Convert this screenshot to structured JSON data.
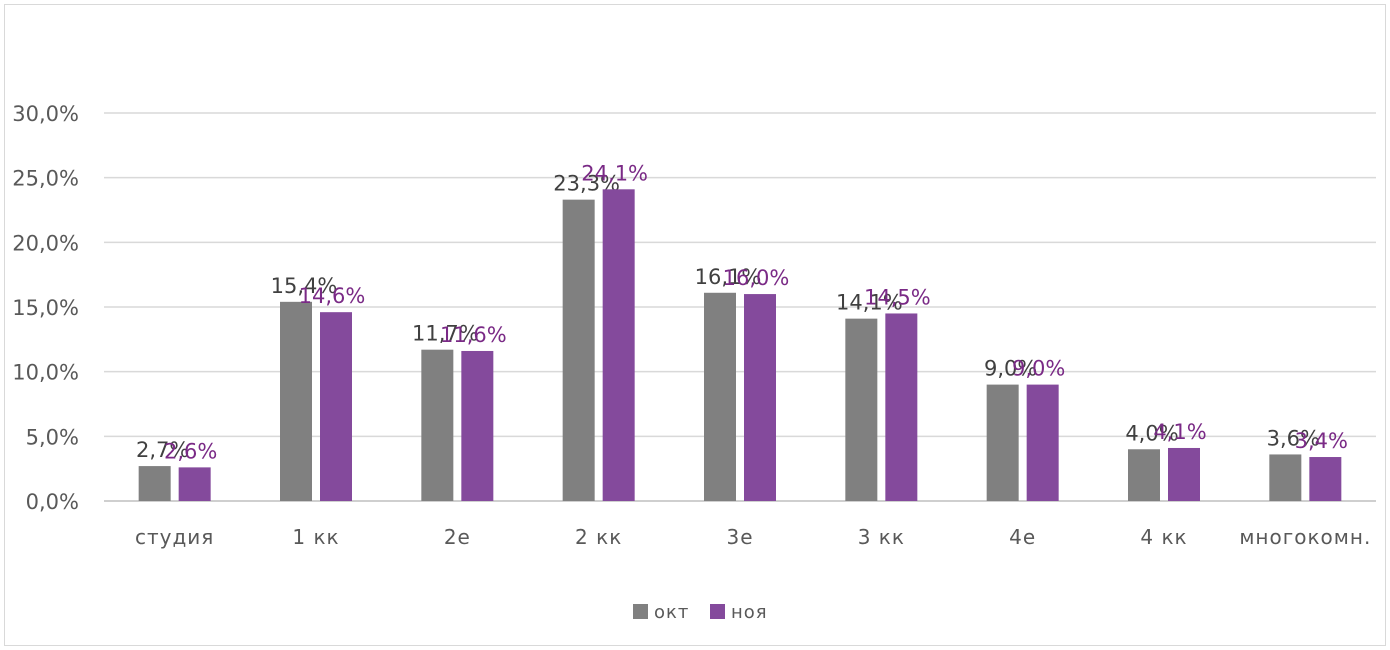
{
  "chart_data": {
    "type": "bar",
    "categories": [
      "студия",
      "1 кк",
      "2е",
      "2 кк",
      "3е",
      "3 кк",
      "4е",
      "4 кк",
      "многокомн."
    ],
    "series": [
      {
        "name": "окт",
        "color": "#808080",
        "values": [
          2.7,
          15.4,
          11.7,
          23.3,
          16.1,
          14.1,
          9.0,
          4.0,
          3.6
        ],
        "labels": [
          "2,7%",
          "15,4%",
          "11,7%",
          "23,3%",
          "16,1%",
          "14,1%",
          "9,0%",
          "4,0%",
          "3,6%"
        ]
      },
      {
        "name": "ноя",
        "color": "#844a9c",
        "values": [
          2.6,
          14.6,
          11.6,
          24.1,
          16.0,
          14.5,
          9.0,
          4.1,
          3.4
        ],
        "labels": [
          "2,6%",
          "14,6%",
          "11,6%",
          "24,1%",
          "16,0%",
          "14,5%",
          "9,0%",
          "4,1%",
          "3,4%"
        ]
      }
    ],
    "yticks": [
      "0,0%",
      "5,0%",
      "10,0%",
      "15,0%",
      "20,0%",
      "25,0%",
      "30,0%"
    ],
    "ylim": [
      0,
      30
    ],
    "grid": true,
    "legend": "bottom-center",
    "title": "",
    "xlabel": "",
    "ylabel": ""
  }
}
